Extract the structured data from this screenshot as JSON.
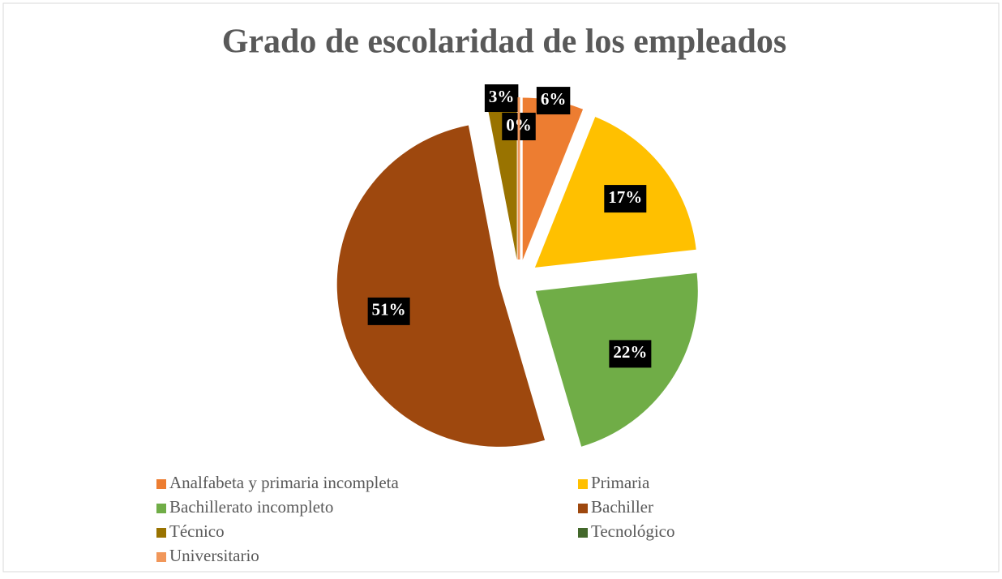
{
  "chart_data": {
    "type": "pie",
    "title": "Grado de escolaridad de los empleados",
    "categories": [
      "Analfabeta y primaria incompleta",
      "Primaria",
      "Bachillerato incompleto",
      "Bachiller",
      "Técnico",
      "Tecnológico",
      "Universitario"
    ],
    "values": [
      6,
      17,
      22,
      51,
      3,
      0,
      0
    ],
    "value_labels": [
      "6%",
      "17%",
      "22%",
      "51%",
      "3%",
      "0%",
      null
    ],
    "colors": [
      "#ED7D31",
      "#FFC000",
      "#70AD47",
      "#9E480E",
      "#997300",
      "#43682B",
      "#F1975A"
    ],
    "legend": "bottom"
  }
}
